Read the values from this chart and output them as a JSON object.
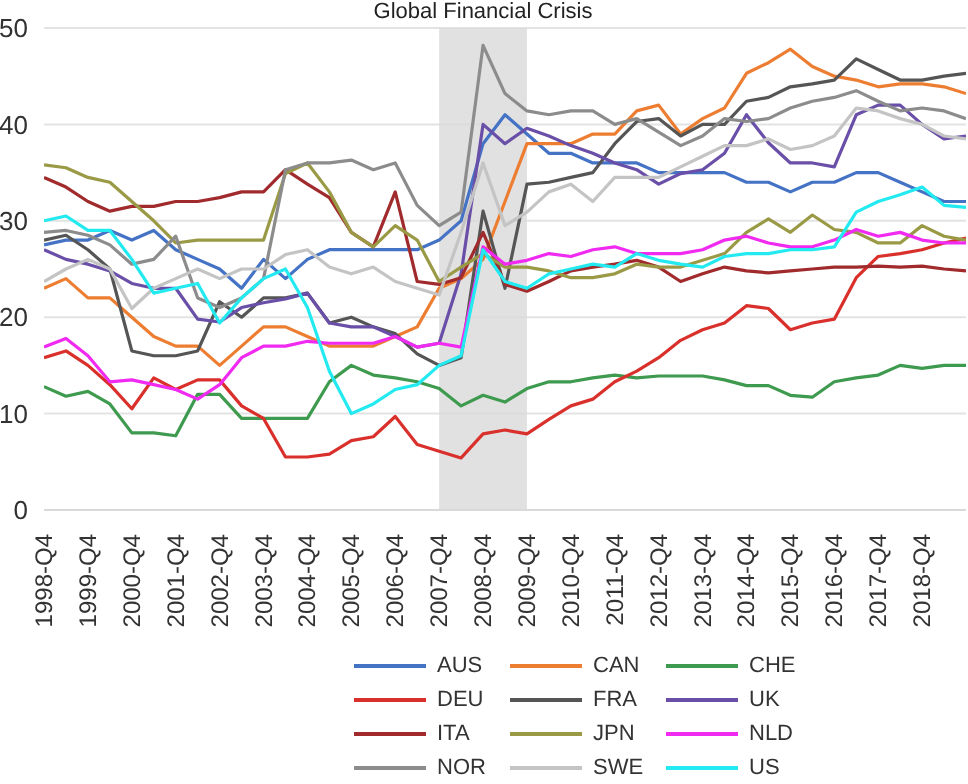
{
  "chart_data": {
    "type": "line",
    "categories": [
      "1998-Q4",
      null,
      "1999-Q4",
      null,
      "2000-Q4",
      null,
      "2001-Q4",
      null,
      "2002-Q4",
      null,
      "2003-Q4",
      null,
      "2004-Q4",
      null,
      "2005-Q4",
      null,
      "2006-Q4",
      null,
      "2007-Q4",
      null,
      "2008-Q4",
      null,
      "2009-Q4",
      null,
      "2010-Q4",
      null,
      "2011-Q4",
      null,
      "2012-Q4",
      null,
      "2013-Q4",
      null,
      "2014-Q4",
      null,
      "2015-Q4",
      null,
      "2016-Q4",
      null,
      "2017-Q4",
      null,
      "2018-Q4",
      null,
      null
    ],
    "ylim": [
      0,
      50
    ],
    "yticks": [
      0,
      10,
      20,
      30,
      40,
      50
    ],
    "grid": "y",
    "legend": "bottom",
    "marker": "none",
    "line_style": "solid",
    "bands": [
      {
        "axis": "x",
        "from": "2007-Q4",
        "to": "2009-Q4",
        "label": "Global Financial Crisis",
        "color": "#d9d9d9"
      }
    ],
    "series": [
      {
        "name": "AUS",
        "color": "#4472c4",
        "values": [
          27.5,
          28,
          28,
          29,
          28,
          29,
          27,
          26,
          25,
          23,
          26,
          24,
          26,
          27,
          27,
          27,
          27,
          27,
          28,
          30,
          38,
          41,
          39,
          37,
          37,
          36,
          36,
          36,
          35,
          35,
          35,
          35,
          34,
          34,
          33,
          34,
          34,
          35,
          35,
          34,
          33,
          32,
          32
        ]
      },
      {
        "name": "CAN",
        "color": "#ed7d31",
        "values": [
          23,
          24,
          22,
          22,
          20,
          18,
          17,
          17,
          15,
          17,
          19,
          19,
          18,
          17,
          17,
          17,
          18,
          19,
          23,
          24,
          26,
          32,
          38,
          38,
          38,
          39,
          39,
          41.4,
          42,
          39,
          40.6,
          41.7,
          45.3,
          46.4,
          47.8,
          46,
          45,
          44.6,
          43.9,
          44.2,
          44.2,
          43.9,
          43.2
        ]
      },
      {
        "name": "CHE",
        "color": "#3e9a4e",
        "values": [
          12.8,
          11.8,
          12.3,
          11,
          8,
          8,
          7.7,
          12,
          12,
          9.5,
          9.5,
          9.5,
          9.5,
          13.3,
          15,
          14,
          13.7,
          13.3,
          12.6,
          10.8,
          11.9,
          11.2,
          12.6,
          13.3,
          13.3,
          13.7,
          14,
          13.7,
          13.9,
          13.9,
          13.9,
          13.5,
          12.9,
          12.9,
          11.9,
          11.7,
          13.3,
          13.7,
          14,
          15,
          14.7,
          15,
          15
        ]
      },
      {
        "name": "DEU",
        "color": "#d9302c",
        "values": [
          15.8,
          16.5,
          15,
          13,
          10.5,
          13.7,
          12.5,
          13.5,
          13.5,
          10.8,
          9.5,
          5.5,
          5.5,
          5.8,
          7.2,
          7.6,
          9.7,
          6.8,
          6.1,
          5.4,
          7.9,
          8.3,
          7.9,
          9.4,
          10.8,
          11.5,
          13.3,
          14.4,
          15.8,
          17.6,
          18.7,
          19.4,
          21.2,
          20.9,
          18.7,
          19.4,
          19.8,
          24.1,
          26.3,
          26.6,
          27,
          27.7,
          28.2
        ]
      },
      {
        "name": "FRA",
        "color": "#555555",
        "values": [
          28,
          28.5,
          27,
          25,
          16.5,
          16,
          16,
          16.5,
          21.6,
          20,
          22,
          22,
          22.5,
          19.4,
          20,
          19,
          18.3,
          16.2,
          15,
          15.8,
          31,
          23,
          33.8,
          34,
          34.5,
          35,
          38,
          40.3,
          40.6,
          38.8,
          40,
          40,
          42.4,
          42.8,
          43.9,
          44.2,
          44.6,
          46.8,
          45.7,
          44.6,
          44.6,
          45,
          45.3
        ]
      },
      {
        "name": "UK",
        "color": "#6a4fa8",
        "values": [
          27,
          26,
          25.5,
          24.8,
          23.5,
          23,
          23,
          19.8,
          19.5,
          21,
          21.5,
          21.9,
          22.5,
          19.4,
          19,
          19,
          18,
          16.9,
          17.3,
          24.5,
          40,
          38,
          39.6,
          38.8,
          37.8,
          37,
          36,
          35.3,
          33.8,
          34.9,
          35.3,
          37,
          41,
          38.1,
          36,
          36,
          35.6,
          41,
          42,
          42,
          40,
          38.5,
          38.8
        ]
      },
      {
        "name": "ITA",
        "color": "#a02a2c",
        "values": [
          34.5,
          33.5,
          32,
          31,
          31.5,
          31.5,
          32,
          32,
          32.4,
          33,
          33,
          35.3,
          33.8,
          32.4,
          28.8,
          27.3,
          33,
          23.7,
          23.4,
          24.1,
          28.8,
          23.4,
          22.7,
          23.7,
          24.8,
          25.2,
          25.5,
          25.9,
          25.2,
          23.7,
          24.5,
          25.2,
          24.8,
          24.6,
          24.8,
          25,
          25.2,
          25.2,
          25.3,
          25.2,
          25.3,
          25,
          24.8
        ]
      },
      {
        "name": "JPN",
        "color": "#9a9a46",
        "values": [
          35.8,
          35.5,
          34.5,
          34,
          32,
          30,
          27.7,
          28,
          28,
          28,
          28,
          34.9,
          36,
          33,
          28.8,
          27.3,
          29.5,
          28,
          23.7,
          25.2,
          26.6,
          25.2,
          25.2,
          24.8,
          24.1,
          24.1,
          24.5,
          25.5,
          25.2,
          25.2,
          25.9,
          26.6,
          28.8,
          30.2,
          28.8,
          30.6,
          29.1,
          28.8,
          27.7,
          27.7,
          29.5,
          28.4,
          28
        ]
      },
      {
        "name": "NLD",
        "color": "#f02af0",
        "values": [
          16.9,
          17.8,
          16,
          13.3,
          13.5,
          13,
          12.5,
          11.5,
          13,
          15.8,
          17,
          17,
          17.5,
          17.3,
          17.3,
          17.3,
          18,
          16.9,
          17.3,
          16.9,
          27.3,
          25.5,
          25.9,
          26.6,
          26.3,
          27,
          27.3,
          26.6,
          26.6,
          26.6,
          27,
          28,
          28.4,
          27.7,
          27.3,
          27.3,
          28,
          29.1,
          28.4,
          28.8,
          28,
          27.7,
          27.7
        ]
      },
      {
        "name": "NOR",
        "color": "#8c8c8c",
        "values": [
          28.8,
          29,
          28.5,
          27.5,
          25.5,
          26,
          28.4,
          22,
          21,
          22,
          24,
          35.3,
          36,
          36,
          36.3,
          35.3,
          36,
          31.6,
          29.5,
          30.9,
          48.2,
          43.2,
          41.4,
          41,
          41.4,
          41.4,
          40,
          40.6,
          39.2,
          37.8,
          38.8,
          40.6,
          40.3,
          40.6,
          41.7,
          42.4,
          42.8,
          43.5,
          42.4,
          41.4,
          41.7,
          41.4,
          40.6
        ]
      },
      {
        "name": "SWE",
        "color": "#c4c4c4",
        "values": [
          23.7,
          25,
          26,
          25,
          20.9,
          23,
          24,
          25,
          24,
          25,
          25,
          26.5,
          27,
          25.2,
          24.5,
          25.2,
          23.7,
          23,
          22.3,
          28.8,
          36,
          29.5,
          30.9,
          33,
          33.8,
          32,
          34.5,
          34.5,
          34.5,
          35.6,
          36.7,
          37.8,
          37.8,
          38.5,
          37.4,
          37.8,
          38.8,
          41.7,
          41.4,
          40.6,
          40,
          38.8,
          38.5
        ]
      },
      {
        "name": "US",
        "color": "#22eaf0",
        "values": [
          30,
          30.5,
          29,
          29,
          26,
          22.5,
          23,
          23.5,
          19.4,
          22,
          24,
          25,
          21,
          14.4,
          10,
          11,
          12.5,
          13,
          15,
          16,
          27,
          23.7,
          23,
          24.5,
          25,
          25.5,
          25.2,
          26.6,
          25.9,
          25.5,
          25.2,
          26.3,
          26.6,
          26.6,
          27,
          27,
          27.3,
          30.9,
          32,
          32.7,
          33.5,
          31.6,
          31.4
        ]
      }
    ]
  }
}
